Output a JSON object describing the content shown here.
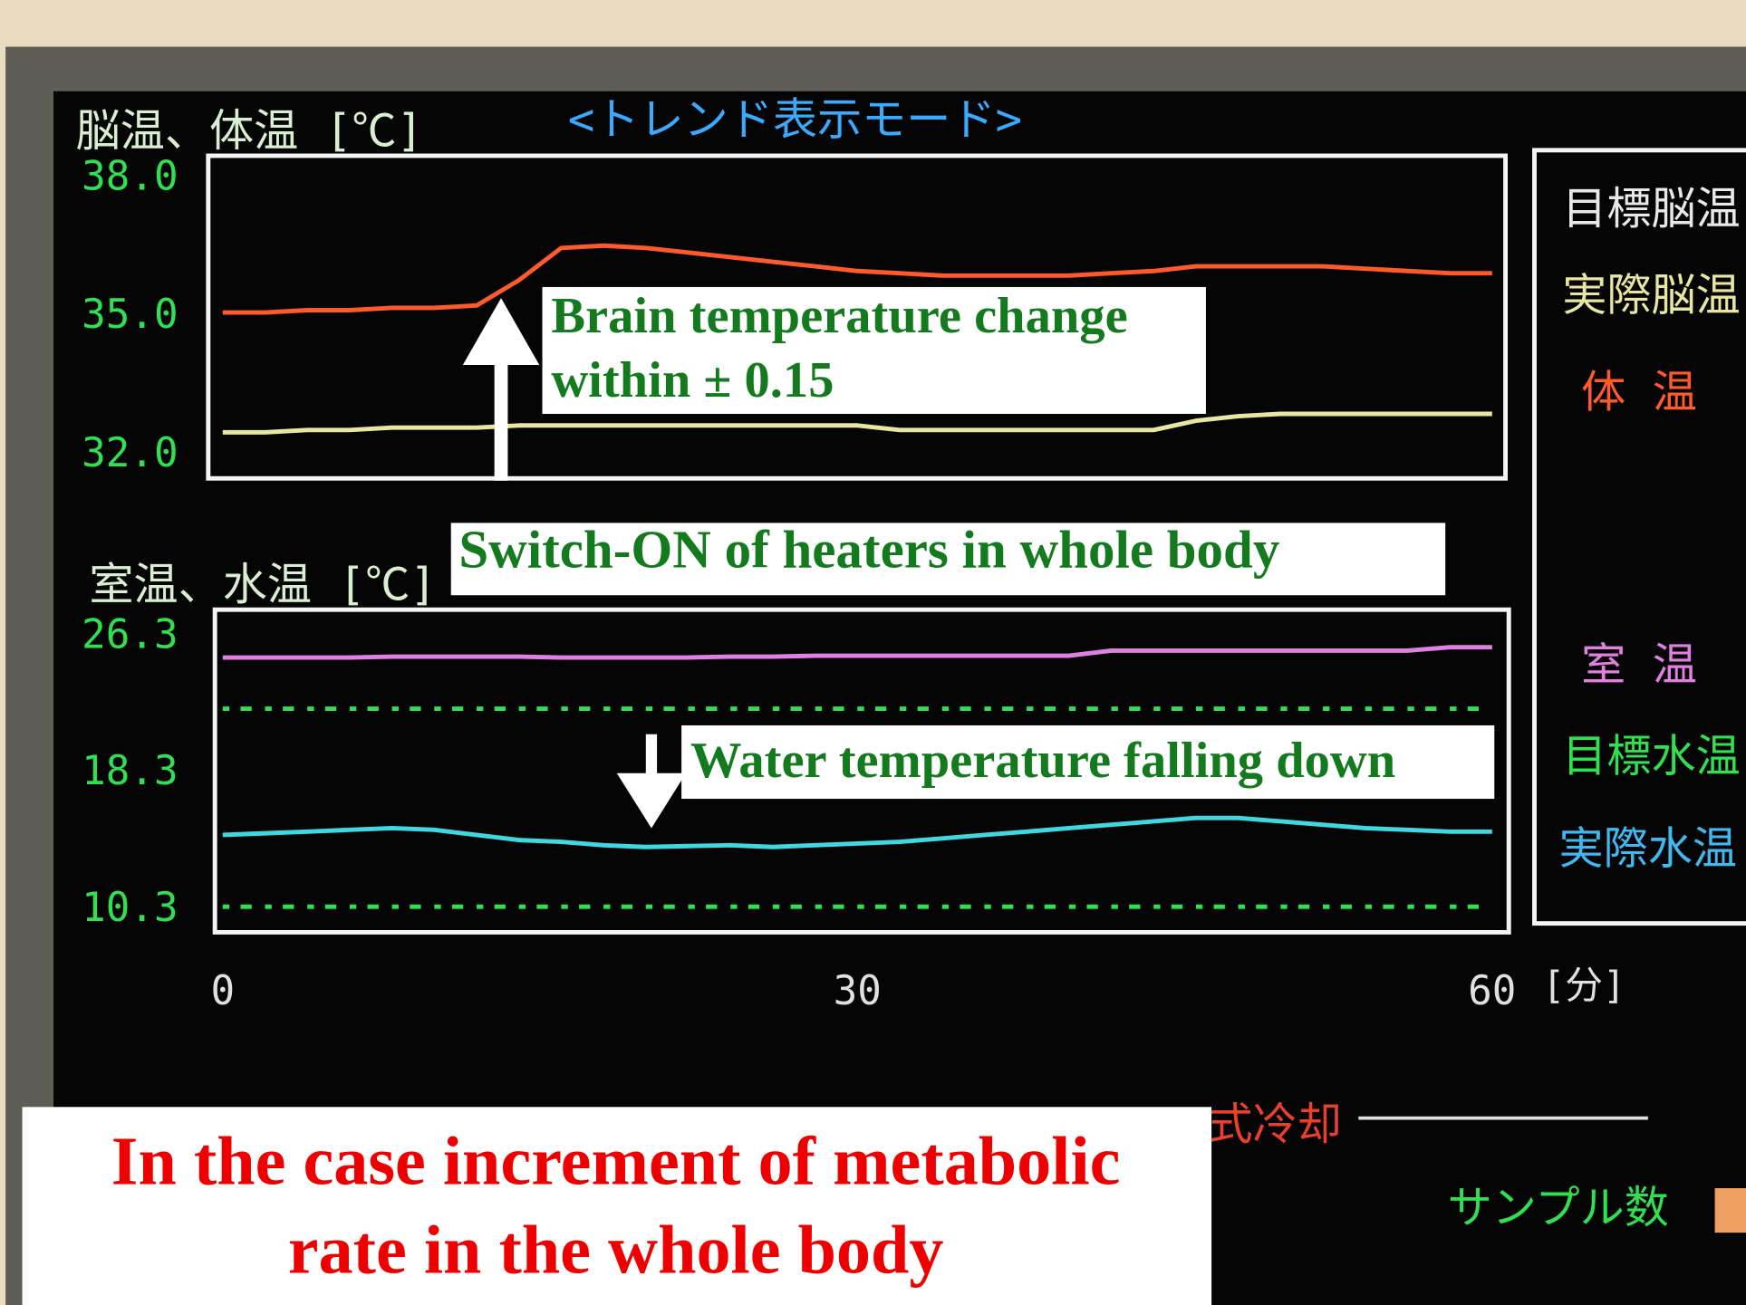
{
  "chart_data": [
    {
      "type": "line",
      "title": "<トレンド表示モード>",
      "ylabel": "脳温、体温 [℃]",
      "xlim": [
        0,
        60
      ],
      "ylim": [
        31.5,
        38.5
      ],
      "yticks": [
        {
          "value": 38,
          "label": "38.0"
        },
        {
          "value": 35,
          "label": "35.0"
        },
        {
          "value": 32,
          "label": "32.0"
        }
      ],
      "x": [
        0,
        2,
        4,
        6,
        8,
        10,
        12,
        14,
        16,
        18,
        20,
        22,
        24,
        26,
        28,
        30,
        32,
        34,
        36,
        38,
        40,
        42,
        44,
        46,
        48,
        50,
        52,
        54,
        56,
        58,
        60
      ],
      "series": [
        {
          "name": "体 温",
          "color": "#ff5a2a",
          "values": [
            35.1,
            35.1,
            35.15,
            35.15,
            35.2,
            35.2,
            35.25,
            35.8,
            36.5,
            36.55,
            36.5,
            36.4,
            36.3,
            36.2,
            36.1,
            36.0,
            35.95,
            35.9,
            35.9,
            35.9,
            35.9,
            35.95,
            36.0,
            36.1,
            36.1,
            36.1,
            36.1,
            36.05,
            36.0,
            35.95,
            35.95
          ]
        },
        {
          "name": "実際脳温",
          "color": "#e8e6a0",
          "values": [
            32.5,
            32.5,
            32.55,
            32.55,
            32.6,
            32.6,
            32.6,
            32.65,
            32.65,
            32.65,
            32.65,
            32.65,
            32.65,
            32.65,
            32.65,
            32.65,
            32.55,
            32.55,
            32.55,
            32.55,
            32.55,
            32.55,
            32.55,
            32.75,
            32.85,
            32.9,
            32.9,
            32.9,
            32.9,
            32.9,
            32.9
          ]
        }
      ]
    },
    {
      "type": "line",
      "ylabel": "室温、水温 [℃]",
      "xlabel": "[分]",
      "xlim": [
        0,
        60
      ],
      "ylim": [
        9.0,
        27.9
      ],
      "yticks": [
        26.3,
        18.3,
        10.3
      ],
      "xticks": [
        0,
        30,
        60
      ],
      "x": [
        0,
        2,
        4,
        6,
        8,
        10,
        12,
        14,
        16,
        18,
        20,
        22,
        24,
        26,
        28,
        30,
        32,
        34,
        36,
        38,
        40,
        42,
        44,
        46,
        48,
        50,
        52,
        54,
        56,
        58,
        60
      ],
      "series": [
        {
          "name": "室 温",
          "color": "#e080e0",
          "values": [
            25.1,
            25.1,
            25.1,
            25.1,
            25.15,
            25.15,
            25.15,
            25.15,
            25.1,
            25.1,
            25.1,
            25.1,
            25.15,
            25.15,
            25.2,
            25.2,
            25.2,
            25.2,
            25.2,
            25.2,
            25.2,
            25.5,
            25.5,
            25.5,
            25.5,
            25.5,
            25.5,
            25.5,
            25.5,
            25.7,
            25.7
          ]
        },
        {
          "name": "目標水温",
          "color": "#30e050",
          "line_style": "dotted",
          "values": [
            22.1,
            22.1,
            22.1,
            22.1,
            22.1,
            22.1,
            22.1,
            22.1,
            22.1,
            22.1,
            22.1,
            22.1,
            22.1,
            22.1,
            22.1,
            22.1,
            22.1,
            22.1,
            22.1,
            22.1,
            22.1,
            22.1,
            22.1,
            22.1,
            22.1,
            22.1,
            22.1,
            22.1,
            22.1,
            22.1,
            22.1
          ]
        },
        {
          "color": "#30e050",
          "line_style": "dotted",
          "values": [
            10.5,
            10.5,
            10.5,
            10.5,
            10.5,
            10.5,
            10.5,
            10.5,
            10.5,
            10.5,
            10.5,
            10.5,
            10.5,
            10.5,
            10.5,
            10.5,
            10.5,
            10.5,
            10.5,
            10.5,
            10.5,
            10.5,
            10.5,
            10.5,
            10.5,
            10.5,
            10.5,
            10.5,
            10.5,
            10.5,
            10.5
          ]
        },
        {
          "name": "実際水温",
          "color": "#40d8e0",
          "values": [
            14.7,
            14.8,
            14.9,
            15.0,
            15.1,
            15.0,
            14.7,
            14.4,
            14.3,
            14.1,
            14.0,
            14.05,
            14.1,
            14.0,
            14.1,
            14.2,
            14.3,
            14.5,
            14.7,
            14.9,
            15.1,
            15.3,
            15.5,
            15.7,
            15.7,
            15.5,
            15.3,
            15.1,
            15.0,
            14.9,
            14.9
          ]
        }
      ]
    }
  ],
  "side_panel": {
    "target_brain_label": "目標脳温",
    "status_label": "式冷却",
    "sample_count_label": "サンプル数"
  },
  "annotations": {
    "brain": [
      "Brain temperature change",
      "within  ± 0.15"
    ],
    "switch": "Switch-ON of heaters in whole body",
    "water": "Water temperature falling down",
    "caption": [
      "In the case increment of metabolic",
      "rate in the whole body"
    ]
  }
}
